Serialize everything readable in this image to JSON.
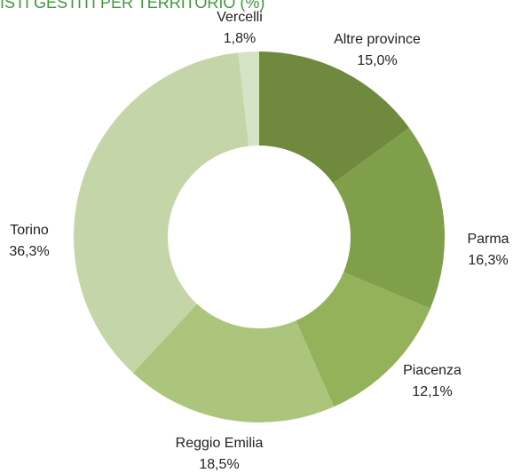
{
  "chart_data": {
    "type": "donut",
    "title": "ISTI GESTITI PER TERRITORIO (%)",
    "categories": [
      "Altre province",
      "Parma",
      "Piacenza",
      "Reggio Emilia",
      "Torino",
      "Vercelli"
    ],
    "values": [
      15.0,
      16.3,
      12.1,
      18.5,
      36.3,
      1.8
    ],
    "value_labels": [
      "15,0%",
      "16,3%",
      "12,1%",
      "18,5%",
      "36,3%",
      "1,8%"
    ],
    "colors": [
      "#6f8a3e",
      "#809f4a",
      "#94b25a",
      "#abc57c",
      "#c4d5a7",
      "#d7e3c6"
    ]
  }
}
